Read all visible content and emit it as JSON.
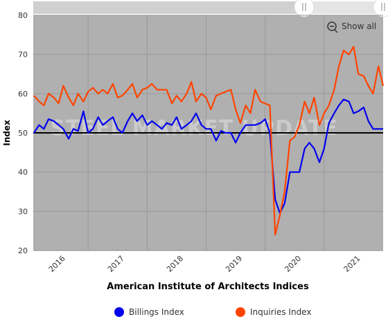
{
  "chart_data": {
    "type": "line",
    "title": "American Institute of Architects Indices",
    "y_label": "Index",
    "watermark": "STEEL MARKET UPDATE",
    "button": "Show all",
    "x": [
      2016.08,
      2016.17,
      2016.25,
      2016.33,
      2016.42,
      2016.5,
      2016.58,
      2016.67,
      2016.75,
      2016.83,
      2016.92,
      2017.0,
      2017.08,
      2017.17,
      2017.25,
      2017.33,
      2017.42,
      2017.5,
      2017.58,
      2017.67,
      2017.75,
      2017.83,
      2017.92,
      2018.0,
      2018.08,
      2018.17,
      2018.25,
      2018.33,
      2018.42,
      2018.5,
      2018.58,
      2018.67,
      2018.75,
      2018.83,
      2018.92,
      2019.0,
      2019.08,
      2019.17,
      2019.25,
      2019.33,
      2019.42,
      2019.5,
      2019.58,
      2019.67,
      2019.75,
      2019.83,
      2019.92,
      2020.0,
      2020.08,
      2020.17,
      2020.25,
      2020.33,
      2020.42,
      2020.5,
      2020.58,
      2020.67,
      2020.75,
      2020.83,
      2020.92,
      2021.0,
      2021.08,
      2021.17,
      2021.25,
      2021.33,
      2021.42,
      2021.5,
      2021.58,
      2021.67,
      2021.75,
      2021.83,
      2021.92,
      2022.0
    ],
    "series": [
      {
        "name": "Billings Index",
        "color": "#0000ee",
        "values": [
          50,
          52,
          51,
          53.5,
          53,
          52,
          51,
          48.5,
          51,
          50.5,
          55.5,
          50,
          51,
          54,
          52,
          53,
          54,
          51,
          50,
          53,
          55,
          53,
          54.5,
          52,
          53,
          52,
          51,
          52.5,
          52,
          54,
          51,
          52,
          53,
          55,
          52,
          51,
          51,
          48,
          50.5,
          50,
          50,
          47.5,
          50,
          52,
          52,
          52,
          52.5,
          53.5,
          50,
          33,
          29.5,
          32,
          40,
          40,
          40,
          46,
          47.5,
          46,
          42.5,
          46,
          52.5,
          55,
          57,
          58.5,
          58,
          55,
          55.5,
          56.5,
          53,
          51,
          51,
          51
        ]
      },
      {
        "name": "Inquiries Index",
        "color": "#ff4400",
        "values": [
          59.5,
          58,
          57,
          60,
          59,
          57.5,
          62,
          59,
          57,
          60,
          58,
          60.5,
          61.5,
          60,
          61,
          60,
          62.5,
          59,
          59.5,
          61,
          62.5,
          59,
          61,
          61.5,
          62.5,
          61,
          61,
          61,
          57.5,
          59.5,
          58,
          60,
          63,
          58,
          60,
          59,
          56,
          59.5,
          60,
          60.5,
          61,
          56,
          52.5,
          57,
          55,
          61,
          58,
          57.5,
          57,
          24,
          29,
          35,
          48,
          49,
          52,
          58,
          55,
          59,
          52,
          55,
          57,
          61,
          67,
          71,
          70,
          72,
          65,
          64.5,
          62,
          60,
          67,
          62
        ]
      }
    ],
    "xlim": [
      2016.07,
      2022.0
    ],
    "xticks": [
      {
        "value": 2016.5,
        "label": "2016"
      },
      {
        "value": 2017.5,
        "label": "2017"
      },
      {
        "value": 2018.5,
        "label": "2018"
      },
      {
        "value": 2019.5,
        "label": "2019"
      },
      {
        "value": 2020.5,
        "label": "2020"
      },
      {
        "value": 2021.5,
        "label": "2021"
      }
    ],
    "xgrid": [
      2017,
      2018,
      2019,
      2020,
      2021
    ],
    "ylim": [
      20,
      80
    ],
    "yticks": [
      20,
      30,
      40,
      50,
      60,
      70,
      80
    ],
    "plot_line": 50,
    "grid": true
  }
}
